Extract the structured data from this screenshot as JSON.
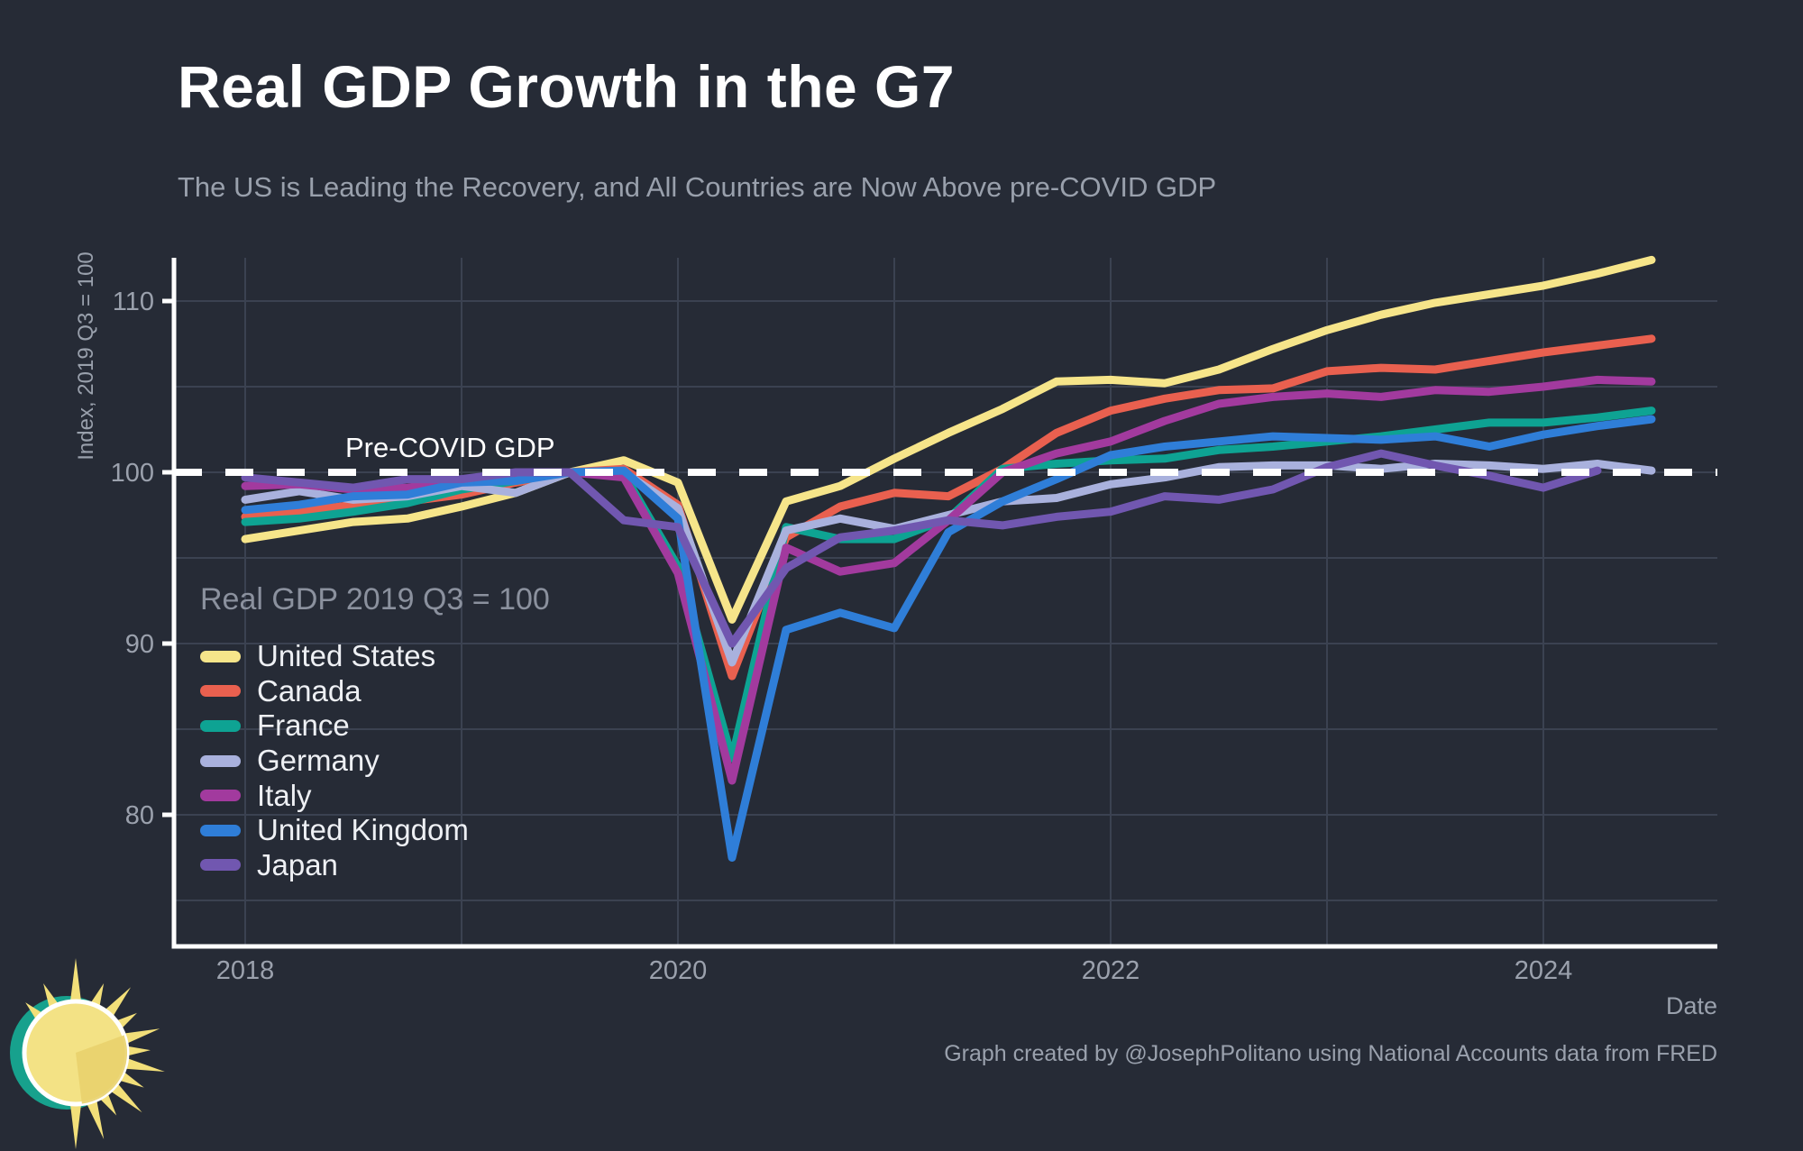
{
  "header": {
    "title": "Real GDP Growth in the G7",
    "subtitle": "The US is Leading the Recovery, and All Countries are Now Above pre-COVID GDP"
  },
  "footer": {
    "credit": "Graph created by @JosephPolitano using National Accounts data from FRED"
  },
  "theme": {
    "background": "#262b36",
    "title_color": "#ffffff",
    "subtitle_color": "#99a0ac",
    "tick_color": "#9ba1ad",
    "axis_color": "#ffffff",
    "grid_color": "#3b4251",
    "legend_title_color": "#8b919e",
    "legend_label_color": "#eef0f4",
    "annotation_color": "#ffffff",
    "footer_color": "#9aa1ad"
  },
  "logo": {
    "name": "sun-logo",
    "body_color": "#f3e285",
    "wedge_color": "#e9d26d",
    "ray_color": "#f2df79",
    "ring_color": "#ffffff",
    "crescent_color": "#17a18d"
  },
  "chart_data": {
    "type": "line",
    "title": "Real GDP Growth in the G7",
    "xlabel": "Date",
    "ylabel": "Index, 2019 Q3 = 100",
    "legend_title": "Real GDP 2019 Q3 = 100",
    "annotation": {
      "text": "Pre-COVID GDP",
      "y": 100
    },
    "reference_line": {
      "y": 100,
      "style": "dashed",
      "color": "#ffffff"
    },
    "x_ticks": [
      2018,
      2020,
      2022,
      2024
    ],
    "y_ticks": [
      80,
      90,
      100,
      110
    ],
    "grid": {
      "x_lines": [
        2018,
        2019,
        2020,
        2021,
        2022,
        2023,
        2024
      ],
      "y_lines": [
        75,
        80,
        85,
        90,
        95,
        100,
        105,
        110
      ]
    },
    "xlim": [
      2017.67,
      2024.81
    ],
    "ylim": [
      72.3,
      112.5
    ],
    "x": [
      2018.0,
      2018.25,
      2018.5,
      2018.75,
      2019.0,
      2019.25,
      2019.5,
      2019.75,
      2020.0,
      2020.25,
      2020.5,
      2020.75,
      2021.0,
      2021.25,
      2021.5,
      2021.75,
      2022.0,
      2022.25,
      2022.5,
      2022.75,
      2023.0,
      2023.25,
      2023.5,
      2023.75,
      2024.0,
      2024.25,
      2024.5
    ],
    "series": [
      {
        "name": "United States",
        "color": "#f6e58a",
        "values": [
          96.1,
          96.6,
          97.1,
          97.3,
          98.0,
          98.8,
          100.0,
          100.7,
          99.4,
          91.4,
          98.3,
          99.2,
          100.8,
          102.3,
          103.7,
          105.3,
          105.4,
          105.2,
          106.0,
          107.2,
          108.3,
          109.2,
          109.9,
          110.4,
          110.9,
          111.6,
          112.4
        ]
      },
      {
        "name": "Canada",
        "color": "#e9604f",
        "values": [
          97.4,
          97.7,
          98.1,
          98.3,
          98.7,
          99.4,
          100.0,
          100.2,
          98.1,
          88.1,
          96.2,
          98.0,
          98.8,
          98.6,
          100.2,
          102.3,
          103.6,
          104.3,
          104.8,
          104.9,
          105.9,
          106.1,
          106.0,
          106.5,
          107.0,
          107.4,
          107.8
        ]
      },
      {
        "name": "France",
        "color": "#0ea393",
        "values": [
          97.1,
          97.3,
          97.7,
          98.2,
          99.0,
          99.5,
          100.0,
          99.9,
          94.5,
          83.3,
          96.8,
          96.1,
          96.1,
          97.3,
          100.2,
          100.5,
          100.7,
          100.8,
          101.3,
          101.5,
          101.8,
          102.1,
          102.5,
          102.9,
          102.9,
          103.2,
          103.6
        ]
      },
      {
        "name": "Germany",
        "color": "#a9b1dd",
        "values": [
          98.4,
          98.9,
          98.4,
          98.6,
          99.2,
          98.8,
          100.0,
          100.0,
          97.9,
          88.9,
          96.6,
          97.3,
          96.7,
          97.5,
          98.3,
          98.5,
          99.3,
          99.7,
          100.3,
          100.4,
          100.4,
          100.2,
          100.5,
          100.4,
          100.2,
          100.5,
          100.1
        ]
      },
      {
        "name": "Italy",
        "color": "#a23a9e",
        "values": [
          99.2,
          99.3,
          99.0,
          99.1,
          99.5,
          99.7,
          100.0,
          99.7,
          94.1,
          82.0,
          95.6,
          94.2,
          94.7,
          97.2,
          100.0,
          101.1,
          101.8,
          103.0,
          104.0,
          104.4,
          104.6,
          104.4,
          104.8,
          104.7,
          105.0,
          105.4,
          105.3
        ]
      },
      {
        "name": "United Kingdom",
        "color": "#2f7ed8",
        "values": [
          97.8,
          98.1,
          98.6,
          98.7,
          99.4,
          99.5,
          100.0,
          100.1,
          97.3,
          77.5,
          90.8,
          91.8,
          90.9,
          96.5,
          98.3,
          99.6,
          101.0,
          101.5,
          101.8,
          102.1,
          102.0,
          101.9,
          102.1,
          101.5,
          102.2,
          102.7,
          103.1
        ]
      },
      {
        "name": "Japan",
        "color": "#7157b0",
        "values": [
          99.7,
          99.4,
          99.1,
          99.6,
          99.6,
          100.0,
          100.0,
          97.2,
          96.8,
          90.0,
          94.4,
          96.2,
          96.6,
          97.2,
          96.9,
          97.4,
          97.7,
          98.6,
          98.4,
          99.0,
          100.3,
          101.1,
          100.4,
          99.8,
          99.1,
          100.1
        ]
      }
    ]
  }
}
